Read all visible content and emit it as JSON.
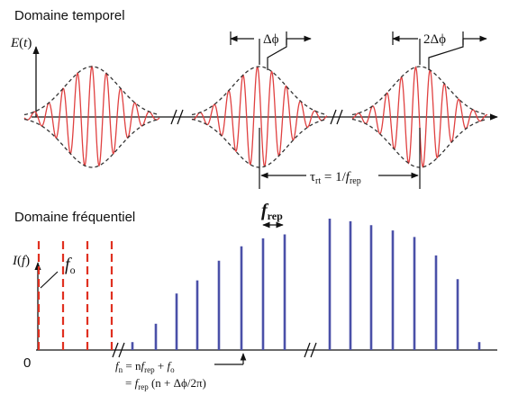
{
  "time_domain": {
    "title": "Domaine temporel",
    "y_label_var": "E",
    "y_label_arg": "t",
    "phase_1": "Δϕ",
    "phase_2": "2Δϕ",
    "tau_symbol": "τ",
    "tau_sub": "rt",
    "tau_eq": "= 1/",
    "tau_f": "f",
    "tau_f_sub": "rep",
    "colors": {
      "carrier": "#e04040",
      "envelope": "#333333",
      "axis": "#111111"
    }
  },
  "freq_domain": {
    "title": "Domaine fréquentiel",
    "y_label_var": "I",
    "y_label_arg": "f",
    "origin_label": "0",
    "f0_var": "f",
    "f0_sub": "o",
    "frep_var": "f",
    "frep_sub": "rep",
    "formula_line1": {
      "lhs_var": "f",
      "lhs_sub": "n",
      "eq": " = n",
      "frep_var": "f",
      "frep_sub": "rep",
      "plus": " + ",
      "f0_var": "f",
      "f0_sub": "o"
    },
    "formula_line2": {
      "eq": "= ",
      "frep_var": "f",
      "frep_sub": "rep",
      "rest": " (n + Δϕ/2π)"
    },
    "offset_line_fractions": [
      0.0,
      0.25,
      0.5,
      0.75
    ],
    "comb_intensity": [
      0.06,
      0.2,
      0.43,
      0.53,
      0.68,
      0.79,
      0.85,
      0.88,
      1.0,
      0.98,
      0.95,
      0.91,
      0.86,
      0.72,
      0.54,
      0.34,
      0.06
    ],
    "colors": {
      "comb": "#4a50a8",
      "offset": "#e03020",
      "axis": "#111111"
    }
  }
}
